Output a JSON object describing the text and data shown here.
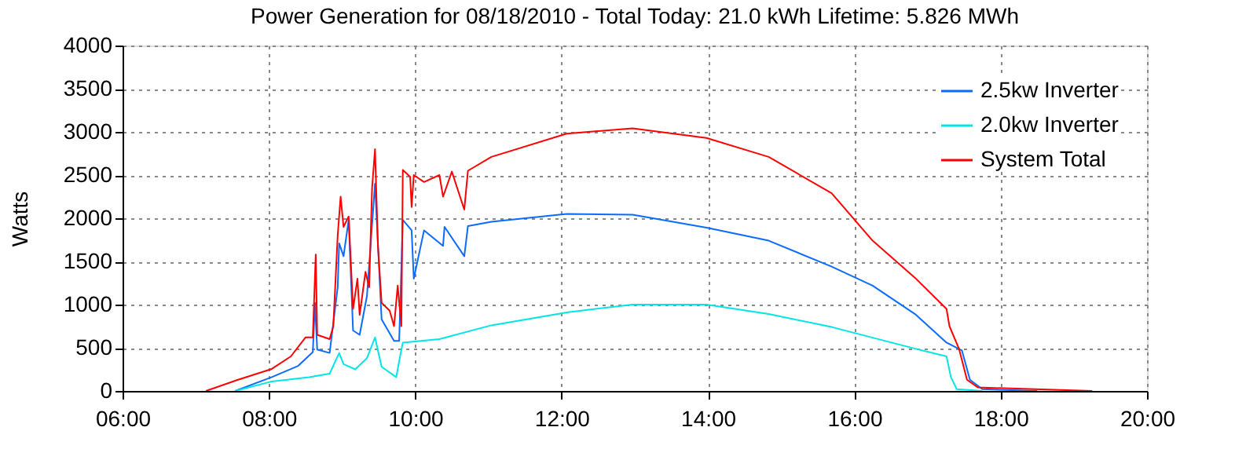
{
  "chart_data": {
    "type": "line",
    "title": "Power Generation for 08/18/2010 - Total Today: 21.0 kWh   Lifetime: 5.826 MWh",
    "ylabel": "Watts",
    "xlim": [
      6,
      20
    ],
    "xticks": [
      {
        "value": 6,
        "label": "06:00"
      },
      {
        "value": 8,
        "label": "08:00"
      },
      {
        "value": 10,
        "label": "10:00"
      },
      {
        "value": 12,
        "label": "12:00"
      },
      {
        "value": 14,
        "label": "14:00"
      },
      {
        "value": 16,
        "label": "16:00"
      },
      {
        "value": 18,
        "label": "18:00"
      },
      {
        "value": 20,
        "label": "20:00"
      }
    ],
    "ylim": [
      0,
      4000
    ],
    "yticks": [
      0,
      500,
      1000,
      1500,
      2000,
      2500,
      3000,
      3500,
      4000
    ],
    "grid": true,
    "legend": "top right",
    "marker": "none",
    "line_style": "solid",
    "series": [
      {
        "name": "2.5kw Inverter",
        "color": "#0a6cff",
        "x": [
          7.54,
          8.04,
          8.4,
          8.6,
          8.63,
          8.66,
          8.83,
          8.94,
          8.96,
          9.02,
          9.09,
          9.15,
          9.24,
          9.34,
          9.45,
          9.54,
          9.71,
          9.78,
          9.83,
          9.95,
          9.98,
          10.12,
          10.38,
          10.4,
          10.67,
          10.72,
          11.04,
          12.07,
          12.97,
          13.98,
          14.83,
          15.69,
          16.25,
          16.83,
          17.26,
          17.47,
          17.58,
          17.75,
          18.5
        ],
        "values": [
          0,
          160,
          290,
          450,
          1020,
          480,
          440,
          1200,
          1710,
          1560,
          1980,
          700,
          650,
          1100,
          2400,
          830,
          580,
          580,
          1980,
          1860,
          1300,
          1860,
          1680,
          1900,
          1560,
          1910,
          1960,
          2050,
          2040,
          1890,
          1740,
          1440,
          1220,
          890,
          560,
          470,
          130,
          20,
          0
        ]
      },
      {
        "name": "2.0kw Inverter",
        "color": "#00e5e5",
        "x": [
          7.54,
          8.04,
          8.55,
          8.83,
          8.96,
          9.02,
          9.18,
          9.34,
          9.45,
          9.54,
          9.74,
          9.79,
          9.83,
          10.33,
          11.04,
          12.07,
          12.97,
          13.98,
          14.83,
          15.69,
          16.83,
          17.26,
          17.32,
          17.4,
          17.75
        ],
        "values": [
          0,
          110,
          160,
          200,
          440,
          310,
          250,
          380,
          620,
          280,
          160,
          390,
          560,
          600,
          760,
          910,
          1000,
          1000,
          890,
          740,
          490,
          400,
          160,
          20,
          0
        ]
      },
      {
        "name": "System Total",
        "color": "#ff0000",
        "x": [
          7.14,
          7.57,
          8.04,
          8.3,
          8.5,
          8.6,
          8.64,
          8.66,
          8.83,
          8.88,
          8.94,
          8.98,
          9.02,
          9.09,
          9.15,
          9.21,
          9.24,
          9.32,
          9.37,
          9.41,
          9.45,
          9.49,
          9.54,
          9.65,
          9.71,
          9.76,
          9.81,
          9.83,
          9.93,
          9.95,
          9.98,
          10.12,
          10.33,
          10.38,
          10.5,
          10.67,
          10.72,
          11.04,
          12.07,
          12.97,
          13.98,
          14.83,
          15.69,
          16.25,
          16.83,
          17.26,
          17.3,
          17.43,
          17.54,
          17.69,
          19.25
        ],
        "values": [
          0,
          127,
          255,
          400,
          620,
          620,
          1580,
          650,
          600,
          750,
          1800,
          2250,
          1900,
          2020,
          950,
          1300,
          880,
          1380,
          1200,
          2350,
          2800,
          1680,
          1020,
          930,
          750,
          1220,
          750,
          2560,
          2480,
          2130,
          2500,
          2420,
          2500,
          2250,
          2540,
          2100,
          2550,
          2710,
          2980,
          3040,
          2930,
          2710,
          2290,
          1740,
          1310,
          950,
          750,
          490,
          130,
          40,
          0
        ]
      }
    ]
  }
}
